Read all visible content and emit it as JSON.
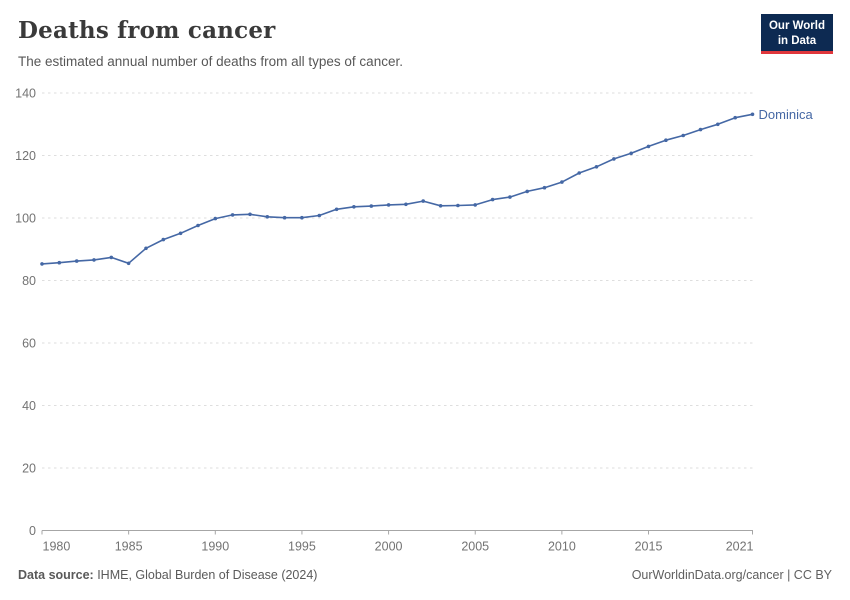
{
  "header": {
    "title": "Deaths from cancer",
    "subtitle": "The estimated annual number of deaths from all types of cancer.",
    "logo": {
      "line1": "Our World",
      "line2": "in Data"
    }
  },
  "chart_data": {
    "type": "line",
    "title": "Deaths from cancer",
    "subtitle": "The estimated annual number of deaths from all types of cancer.",
    "entity": "Dominica",
    "x": [
      1980,
      1981,
      1982,
      1983,
      1984,
      1985,
      1986,
      1987,
      1988,
      1989,
      1990,
      1991,
      1992,
      1993,
      1994,
      1995,
      1996,
      1997,
      1998,
      1999,
      2000,
      2001,
      2002,
      2003,
      2004,
      2005,
      2006,
      2007,
      2008,
      2009,
      2010,
      2011,
      2012,
      2013,
      2014,
      2015,
      2016,
      2017,
      2018,
      2019,
      2020,
      2021
    ],
    "series": [
      {
        "name": "Dominica",
        "color": "#4568a5",
        "values": [
          85.3,
          85.7,
          86.2,
          86.6,
          87.4,
          85.5,
          90.3,
          93.1,
          95.1,
          97.6,
          99.8,
          101.0,
          101.2,
          100.4,
          100.1,
          100.1,
          100.8,
          102.8,
          103.6,
          103.8,
          104.2,
          104.4,
          105.4,
          103.9,
          104.0,
          104.2,
          105.9,
          106.7,
          108.5,
          109.7,
          111.5,
          114.4,
          116.4,
          118.9,
          120.7,
          122.9,
          124.9,
          126.4,
          128.3,
          130.0,
          132.1,
          133.2
        ]
      }
    ],
    "xlabel": "",
    "ylabel": "",
    "ylim": [
      0,
      140
    ],
    "yticks": [
      0,
      20,
      40,
      60,
      80,
      100,
      120,
      140
    ],
    "xticks": [
      1980,
      1985,
      1990,
      1995,
      2000,
      2005,
      2010,
      2015,
      2021
    ],
    "grid": true,
    "legend_position": "end-of-line label"
  },
  "footer": {
    "source_label": "Data source:",
    "source_value": " IHME, Global Burden of Disease (2024)",
    "credit": "OurWorldinData.org/cancer | CC BY"
  },
  "colors": {
    "line": "#4568a5",
    "logo_bg": "#0d2a52",
    "logo_accent": "#e0373c",
    "gridline": "#dedede",
    "axis_line": "#a6a6a6",
    "tick_label": "#737373"
  }
}
